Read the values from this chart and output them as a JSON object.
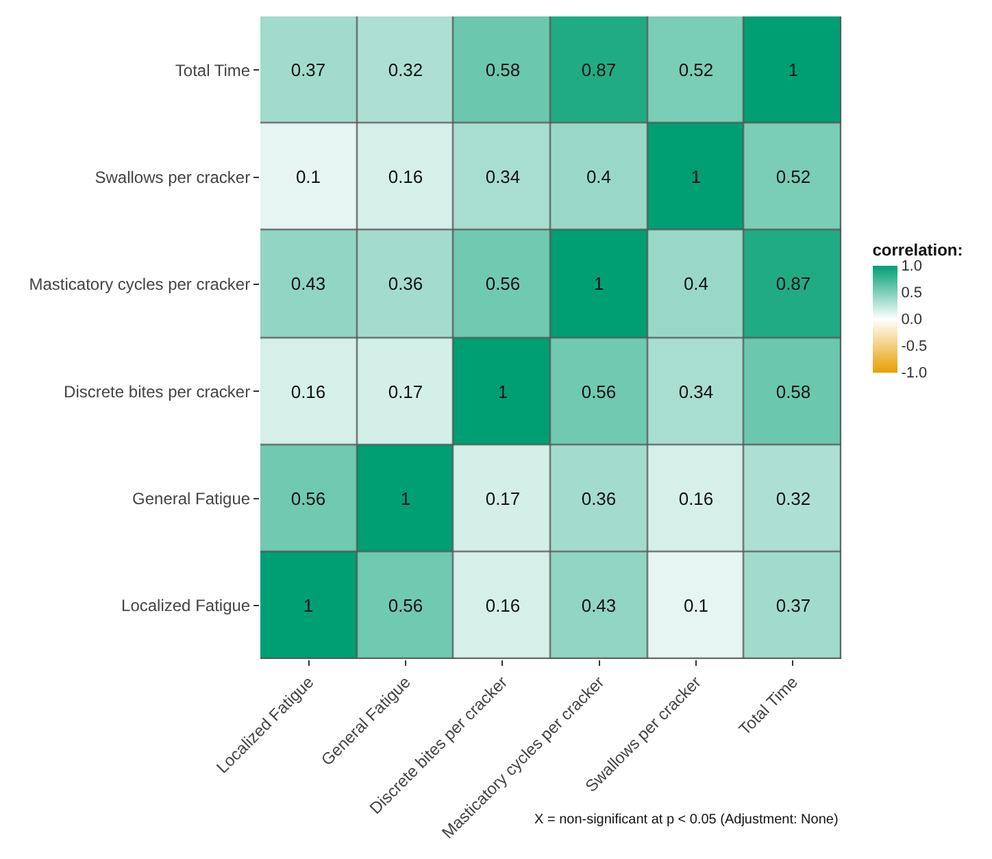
{
  "chart_data": {
    "type": "heatmap",
    "categories": [
      "Localized Fatigue",
      "General Fatigue",
      "Discrete bites per cracker",
      "Masticatory cycles per cracker",
      "Swallows per cracker",
      "Total Time"
    ],
    "y_categories": [
      "Total Time",
      "Swallows per cracker",
      "Masticatory cycles per cracker",
      "Discrete bites per cracker",
      "General Fatigue",
      "Localized Fatigue"
    ],
    "cells": [
      [
        0.37,
        0.32,
        0.58,
        0.87,
        0.52,
        1
      ],
      [
        0.1,
        0.16,
        0.34,
        0.4,
        1,
        0.52
      ],
      [
        0.43,
        0.36,
        0.56,
        1,
        0.4,
        0.87
      ],
      [
        0.16,
        0.17,
        1,
        0.56,
        0.34,
        0.58
      ],
      [
        0.56,
        1,
        0.17,
        0.36,
        0.16,
        0.32
      ],
      [
        1,
        0.56,
        0.16,
        0.43,
        0.1,
        0.37
      ]
    ],
    "data_labels": true,
    "clabel": "correlation:",
    "clim": [
      -1,
      1
    ],
    "cticks": [
      {
        "value": -1,
        "label": "-1.0"
      },
      {
        "value": -0.5,
        "label": "-0.5"
      },
      {
        "value": 0,
        "label": "0.0"
      },
      {
        "value": 0.5,
        "label": "0.5"
      },
      {
        "value": 1,
        "label": "1.0"
      }
    ],
    "colors": [
      "#e69f00",
      "#ffffff",
      "#009e73"
    ],
    "annotations": [
      "X = non-significant at p < 0.05 (Adjustment: None)"
    ]
  }
}
